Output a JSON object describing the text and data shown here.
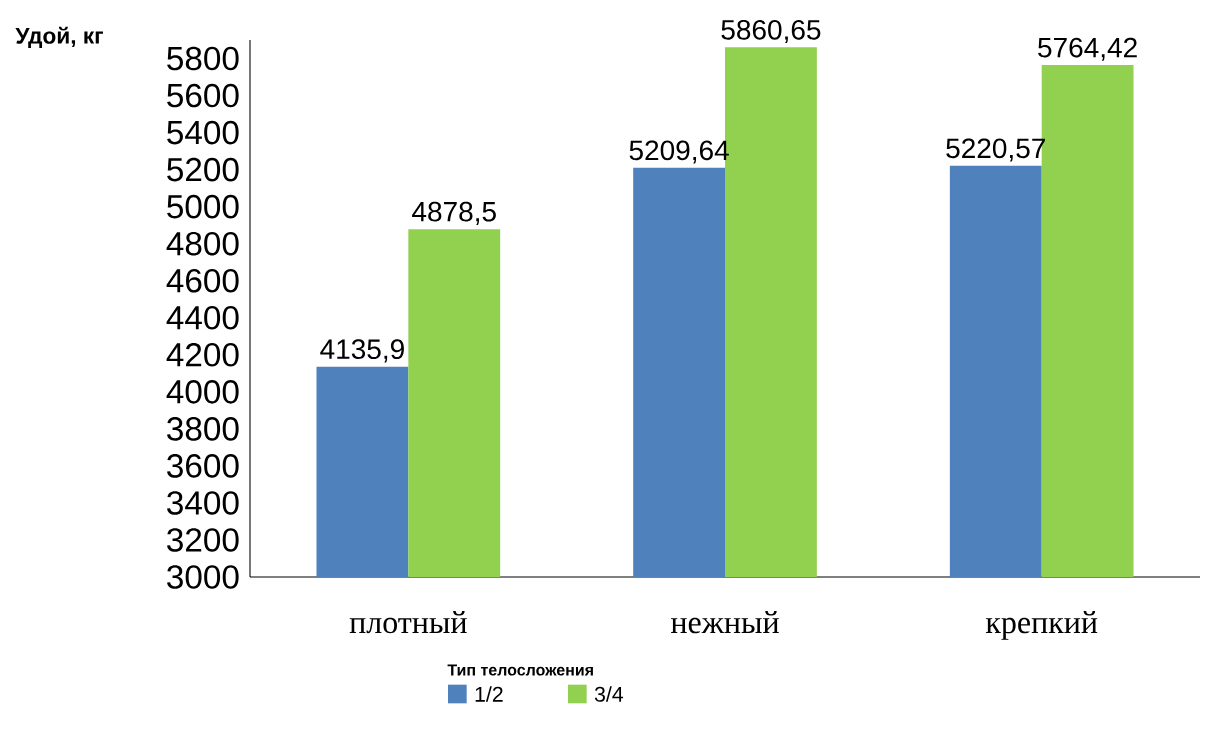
{
  "chart_data": {
    "type": "bar",
    "ylabel": "Удой, кг",
    "legend_title": "Тип телосложения",
    "legend": "bottom",
    "categories": [
      "плотный",
      "нежный",
      "крепкий"
    ],
    "series": [
      {
        "name": "1/2",
        "color": "#4f81bd",
        "values": [
          4135.9,
          5209.64,
          5220.57
        ],
        "value_labels": [
          "4135,9",
          "5209,64",
          "5220,57"
        ]
      },
      {
        "name": "3/4",
        "color": "#92d050",
        "values": [
          4878.5,
          5860.65,
          5764.42
        ],
        "value_labels": [
          "4878,5",
          "5860,65",
          "5764,42"
        ]
      }
    ],
    "ylim": [
      3000,
      5900
    ],
    "yticks": [
      3000,
      3200,
      3400,
      3600,
      3800,
      4000,
      4200,
      4400,
      4600,
      4800,
      5000,
      5200,
      5400,
      5600,
      5800
    ],
    "grid": false
  }
}
